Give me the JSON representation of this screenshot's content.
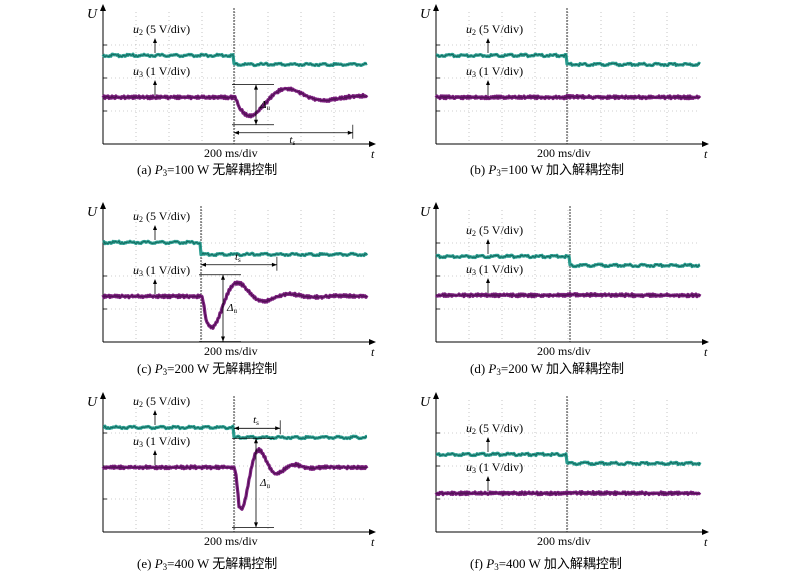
{
  "colors": {
    "u2": "#2a9d8f",
    "u3": "#7b1f7e",
    "grid": "#a0a0a0"
  },
  "axis": {
    "y": "U",
    "x": "t"
  },
  "time_div": "200 ms/div",
  "trace_labels": {
    "u2_var": "u",
    "u2_sub": "2",
    "u2_rest": " (5 V/div)",
    "u3_var": "u",
    "u3_sub": "3",
    "u3_rest": " (1 V/div)"
  },
  "annotations": {
    "ts_var": "t",
    "ts_sub": "s",
    "du_var": "Δ",
    "du_sub": "u"
  },
  "panels": [
    {
      "tag": "(a) ",
      "var": "P",
      "sub": "3",
      "rest": "=100 W 无解耦控制",
      "decoupled": false,
      "dip": 0.9,
      "overshoot": 0.85,
      "settle_div": 3.6
    },
    {
      "tag": "(b) ",
      "var": "P",
      "sub": "3",
      "rest": "=100 W 加入解耦控制",
      "decoupled": true
    },
    {
      "tag": "(c) ",
      "var": "P",
      "sub": "3",
      "rest": "=200 W 无解耦控制",
      "decoupled": false,
      "dip": 1.5,
      "overshoot": 0.9,
      "settle_div": 2.3
    },
    {
      "tag": "(d) ",
      "var": "P",
      "sub": "3",
      "rest": "=200 W 加入解耦控制",
      "decoupled": true
    },
    {
      "tag": "(e) ",
      "var": "P",
      "sub": "3",
      "rest": "=400 W 无解耦控制",
      "decoupled": false,
      "dip": 2.0,
      "overshoot": 0.8,
      "settle_div": 1.4
    },
    {
      "tag": "(f) ",
      "var": "P",
      "sub": "3",
      "rest": "=400 W 加入解耦控制",
      "decoupled": true
    }
  ]
}
